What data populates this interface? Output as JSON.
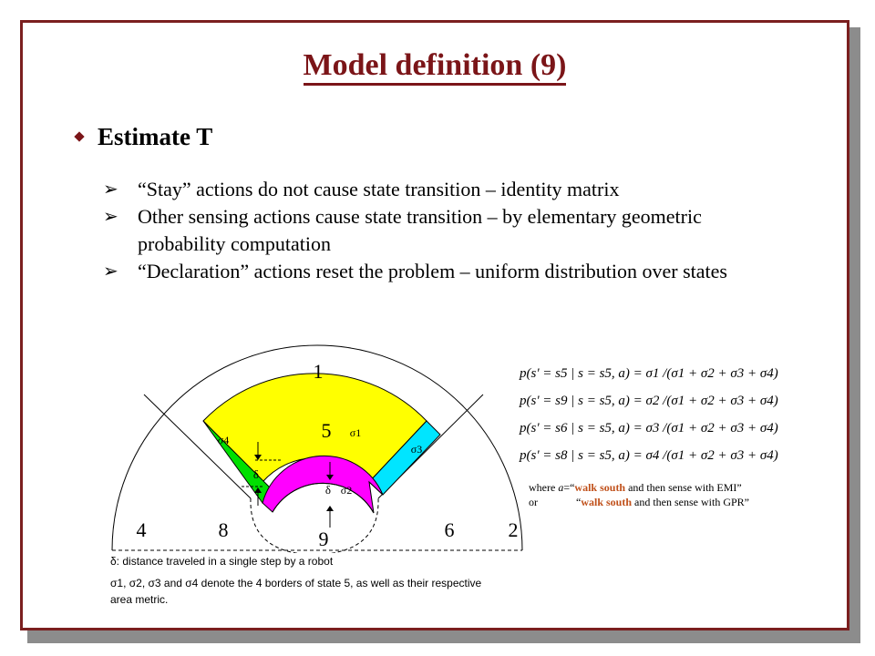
{
  "slide": {
    "title": "Model definition (9)",
    "main_bullet": "Estimate T",
    "sub_bullets": [
      "“Stay” actions do not cause state transition – identity matrix",
      "Other sensing actions cause state transition  – by elementary geometric probability computation",
      "“Declaration” actions reset the problem  – uniform distribution over states"
    ]
  },
  "diagram": {
    "state_labels": [
      "1",
      "2",
      "4",
      "5",
      "6",
      "8",
      "9"
    ],
    "sigma_labels": [
      "σ1",
      "σ2",
      "σ3",
      "σ4"
    ],
    "delta_label": "δ",
    "colors": {
      "state5": "#ffff00",
      "sigma4": "#00e000",
      "sigma3": "#00e5ff",
      "sigma2": "#ff00ff"
    }
  },
  "formulas": [
    "p(s' = s5 | s = s5, a) = σ1 /(σ1 + σ2 + σ3 + σ4)",
    "p(s' = s9 | s = s5, a) = σ2 /(σ1 + σ2 + σ3 + σ4)",
    "p(s' = s6 | s = s5, a) = σ3 /(σ1 + σ2 + σ3 + σ4)",
    "p(s' = s8 | s = s5, a) = σ4 /(σ1 + σ2 + σ3 + σ4)"
  ],
  "where_note": {
    "line1_prefix": "where ",
    "var": "a",
    "line1_eq": "=“",
    "hl1": "walk south",
    "line1_rest": " and then sense with EMI”",
    "line2_prefix": "or              “",
    "hl2": "walk south",
    "line2_rest": " and then sense with GPR”"
  },
  "notes": [
    "δ: distance traveled in a single step by a robot",
    "σ1, σ2, σ3 and σ4 denote the 4 borders of state 5, as well as their respective area metric."
  ]
}
